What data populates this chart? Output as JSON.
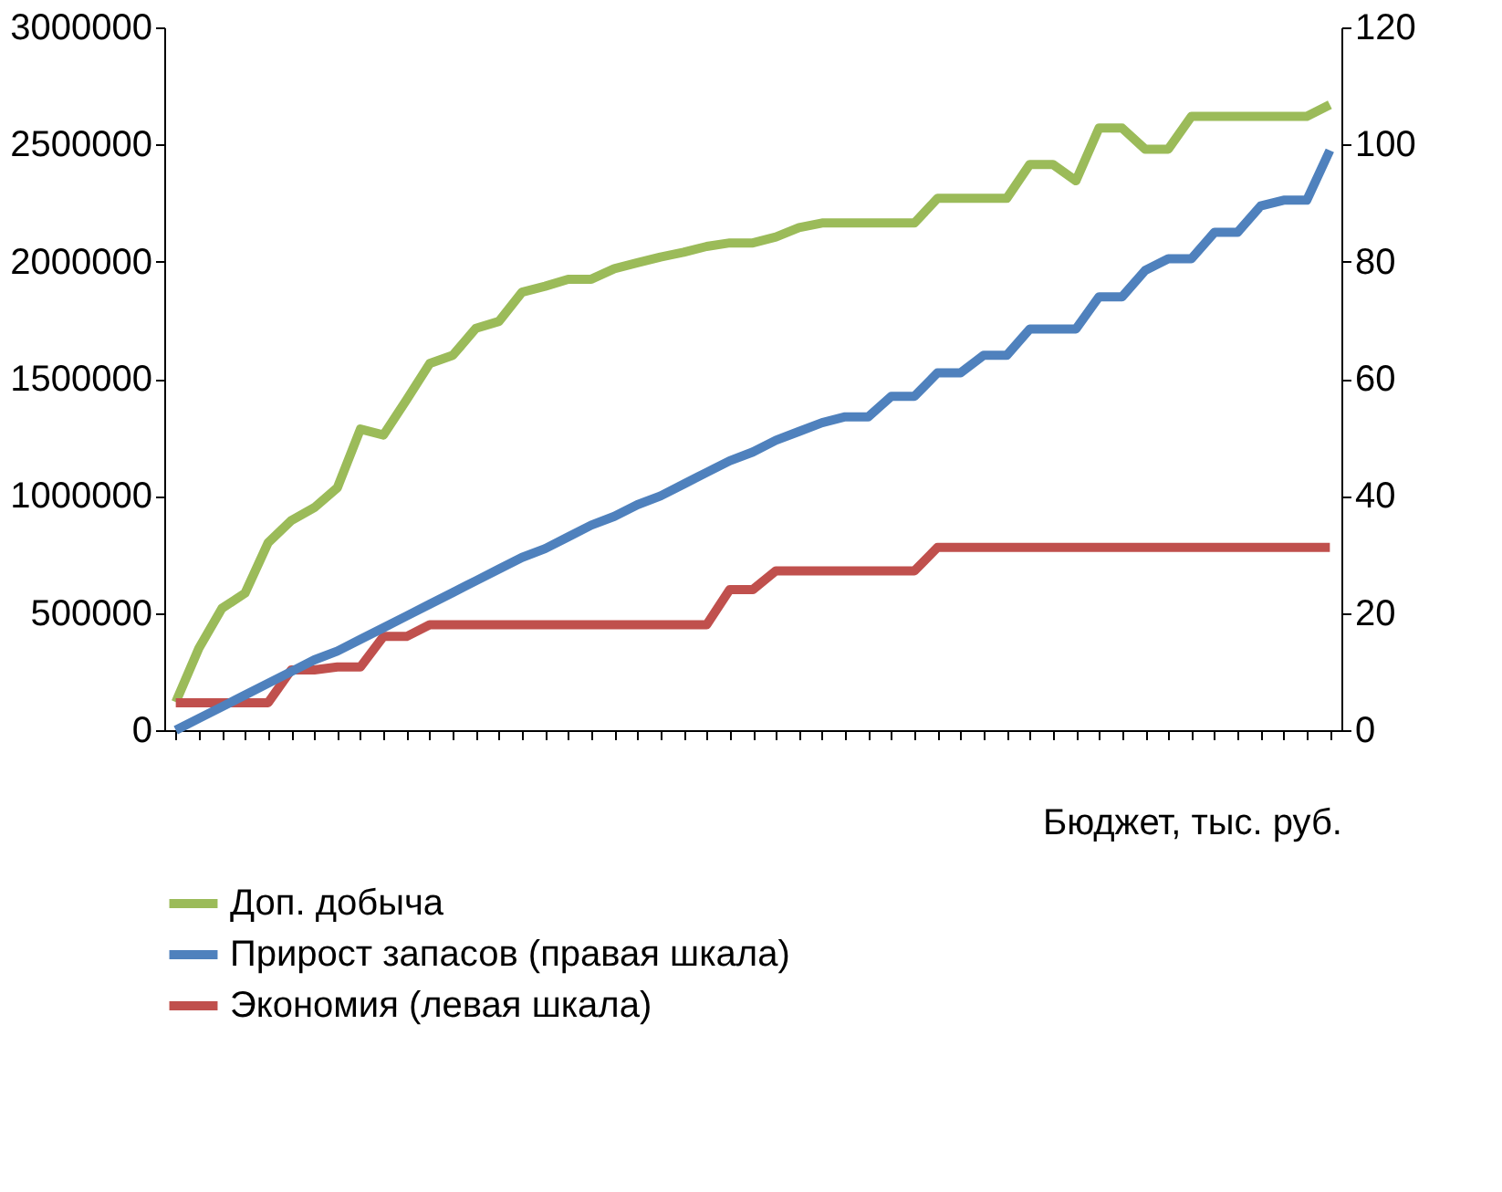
{
  "chart_data": {
    "type": "line",
    "xlabel": "Бюджет, тыс. руб.",
    "categories": [
      null,
      null,
      null,
      null,
      null,
      null,
      null,
      null,
      null,
      null,
      null,
      null,
      null,
      null,
      null,
      null,
      null,
      null,
      null,
      null,
      null,
      null,
      null,
      null,
      null,
      null,
      null,
      null,
      null,
      null,
      null,
      null,
      null,
      null,
      null,
      null,
      null,
      null,
      null,
      null,
      null,
      null,
      null,
      null,
      null,
      null,
      null,
      null,
      null,
      null,
      null
    ],
    "series": [
      {
        "name": "Доп. добыча",
        "color": "#9bbb59",
        "values": [
          120000,
          350000,
          520000,
          585000,
          800000,
          895000,
          950000,
          1035000,
          1285000,
          1260000,
          1410000,
          1565000,
          1600000,
          1715000,
          1745000,
          1870000,
          1895000,
          1925000,
          1925000,
          1970000,
          1995000,
          2020000,
          2040000,
          2065000,
          2080000,
          2080000,
          2105000,
          2145000,
          2165000,
          2165000,
          2165000,
          2165000,
          2165000,
          2270000,
          2270000,
          2270000,
          2270000,
          2415000,
          2415000,
          2345000,
          2570000,
          2570000,
          2480000,
          2480000,
          2620000,
          2620000,
          2620000,
          2620000,
          2620000,
          2620000,
          2670000
        ]
      },
      {
        "name": "Прирост запасов (правая шкала)",
        "color": "#4f81bd",
        "axis": "y2",
        "values": [
          0,
          2,
          4,
          6,
          8,
          10,
          12,
          13.5,
          15.5,
          17.5,
          19.5,
          21.5,
          23.5,
          25.5,
          27.5,
          29.5,
          31,
          33,
          35,
          36.5,
          38.5,
          40,
          42,
          44,
          46,
          47.5,
          49.5,
          51,
          52.5,
          53.5,
          53.5,
          57,
          57,
          61,
          61,
          64,
          64,
          68.5,
          68.5,
          68.5,
          74,
          74,
          78.5,
          80.5,
          80.5,
          85,
          85,
          89.5,
          90.5,
          90.5,
          99
        ]
      },
      {
        "name": "Экономия (левая шкала)",
        "color": "#c0504d",
        "values": [
          117000,
          117000,
          117000,
          117000,
          117000,
          257000,
          257000,
          270000,
          270000,
          400000,
          400000,
          450000,
          450000,
          450000,
          450000,
          450000,
          450000,
          450000,
          450000,
          450000,
          450000,
          450000,
          450000,
          450000,
          600000,
          600000,
          680000,
          680000,
          680000,
          680000,
          680000,
          680000,
          680000,
          780000,
          780000,
          780000,
          780000,
          780000,
          780000,
          780000,
          780000,
          780000,
          780000,
          780000,
          780000,
          780000,
          780000,
          780000,
          780000,
          780000,
          780000
        ]
      }
    ],
    "ylim": [
      0,
      3000000
    ],
    "yticks": [
      0,
      500000,
      1000000,
      1500000,
      2000000,
      2500000,
      3000000
    ],
    "y2lim": [
      0,
      120
    ],
    "y2ticks": [
      0,
      20,
      40,
      60,
      80,
      100,
      120
    ],
    "grid": false,
    "legend": "bottom",
    "marker": "none",
    "line_style": "solid"
  }
}
